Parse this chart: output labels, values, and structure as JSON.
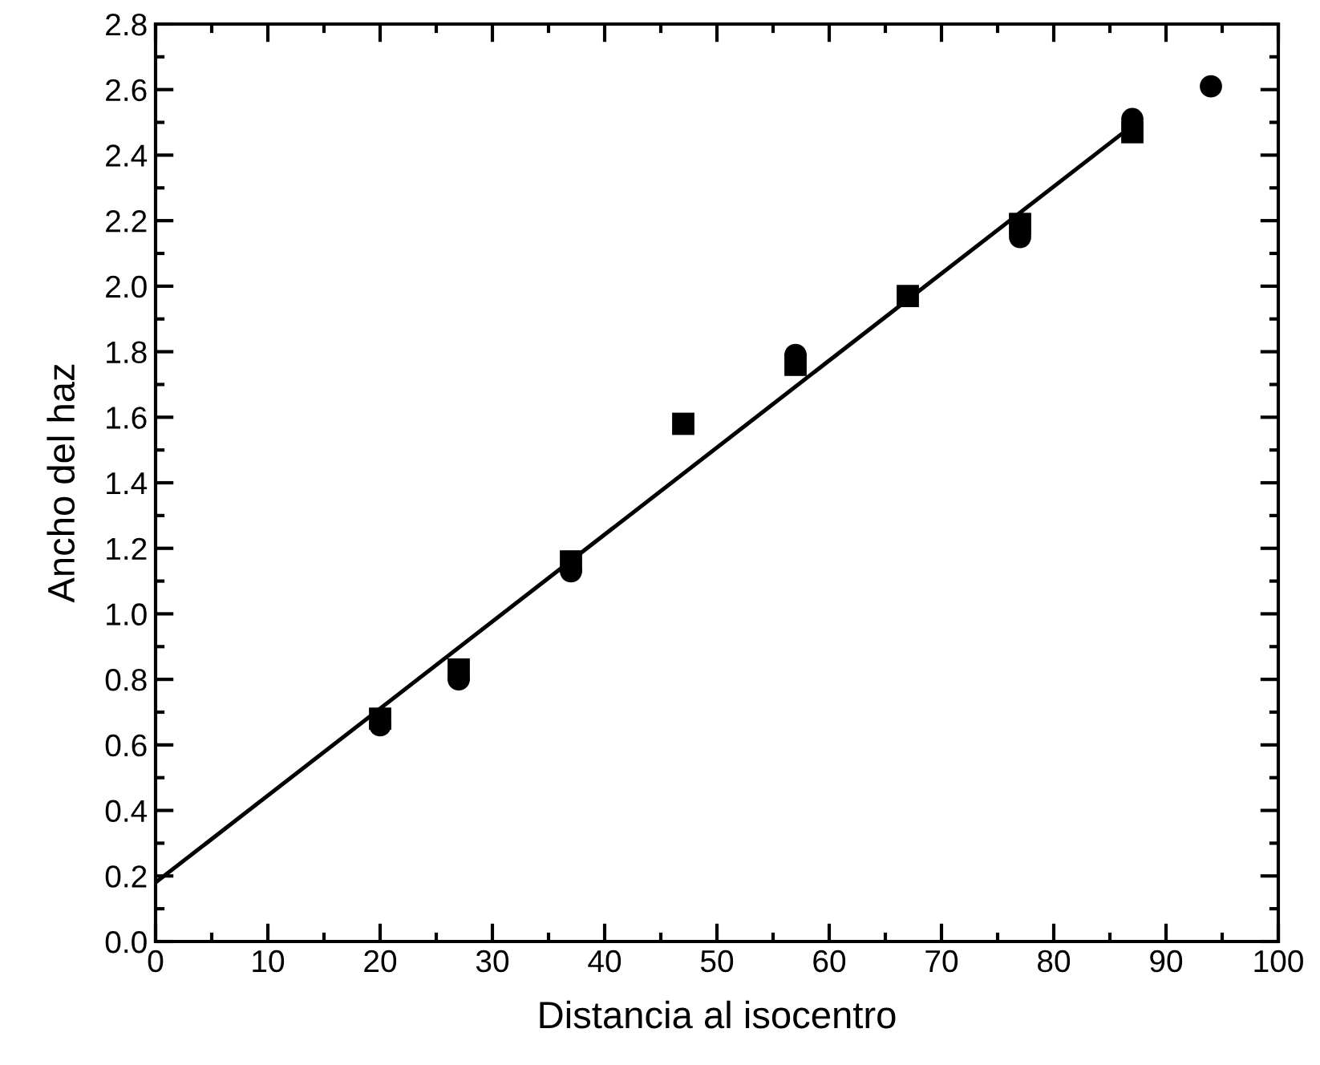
{
  "chart_data": {
    "type": "scatter",
    "xlabel": "Distancia al isocentro",
    "ylabel": "Ancho del haz",
    "xlim": [
      0,
      100
    ],
    "xticks": [
      0,
      10,
      20,
      30,
      40,
      50,
      60,
      70,
      80,
      90,
      100
    ],
    "ylim": [
      0,
      2.8
    ],
    "yticks": [
      {
        "value": 0,
        "label": "0.0"
      },
      0.2,
      0.4,
      0.6,
      0.8,
      {
        "value": 1,
        "label": "1.0"
      },
      1.2,
      1.4,
      1.6,
      1.8,
      {
        "value": 2,
        "label": "2.0"
      },
      2.2,
      2.4,
      2.6,
      2.8
    ],
    "grid": false,
    "legend": false,
    "series": [
      {
        "marker": "square",
        "color": "#000000",
        "x": [
          20,
          27,
          37,
          47,
          57,
          67,
          77,
          87
        ],
        "values": [
          0.68,
          0.83,
          1.16,
          1.58,
          1.76,
          1.97,
          2.19,
          2.47
        ]
      },
      {
        "marker": "circle",
        "color": "#000000",
        "x": [
          20,
          27,
          37,
          57,
          77,
          87,
          94
        ],
        "values": [
          0.66,
          0.8,
          1.13,
          1.79,
          2.15,
          2.51,
          2.61
        ]
      },
      {
        "type": "line",
        "marker": "none",
        "line_style": "solid",
        "color": "#000000",
        "x": [
          0,
          87
        ],
        "values": [
          0.18,
          2.49
        ]
      }
    ]
  }
}
